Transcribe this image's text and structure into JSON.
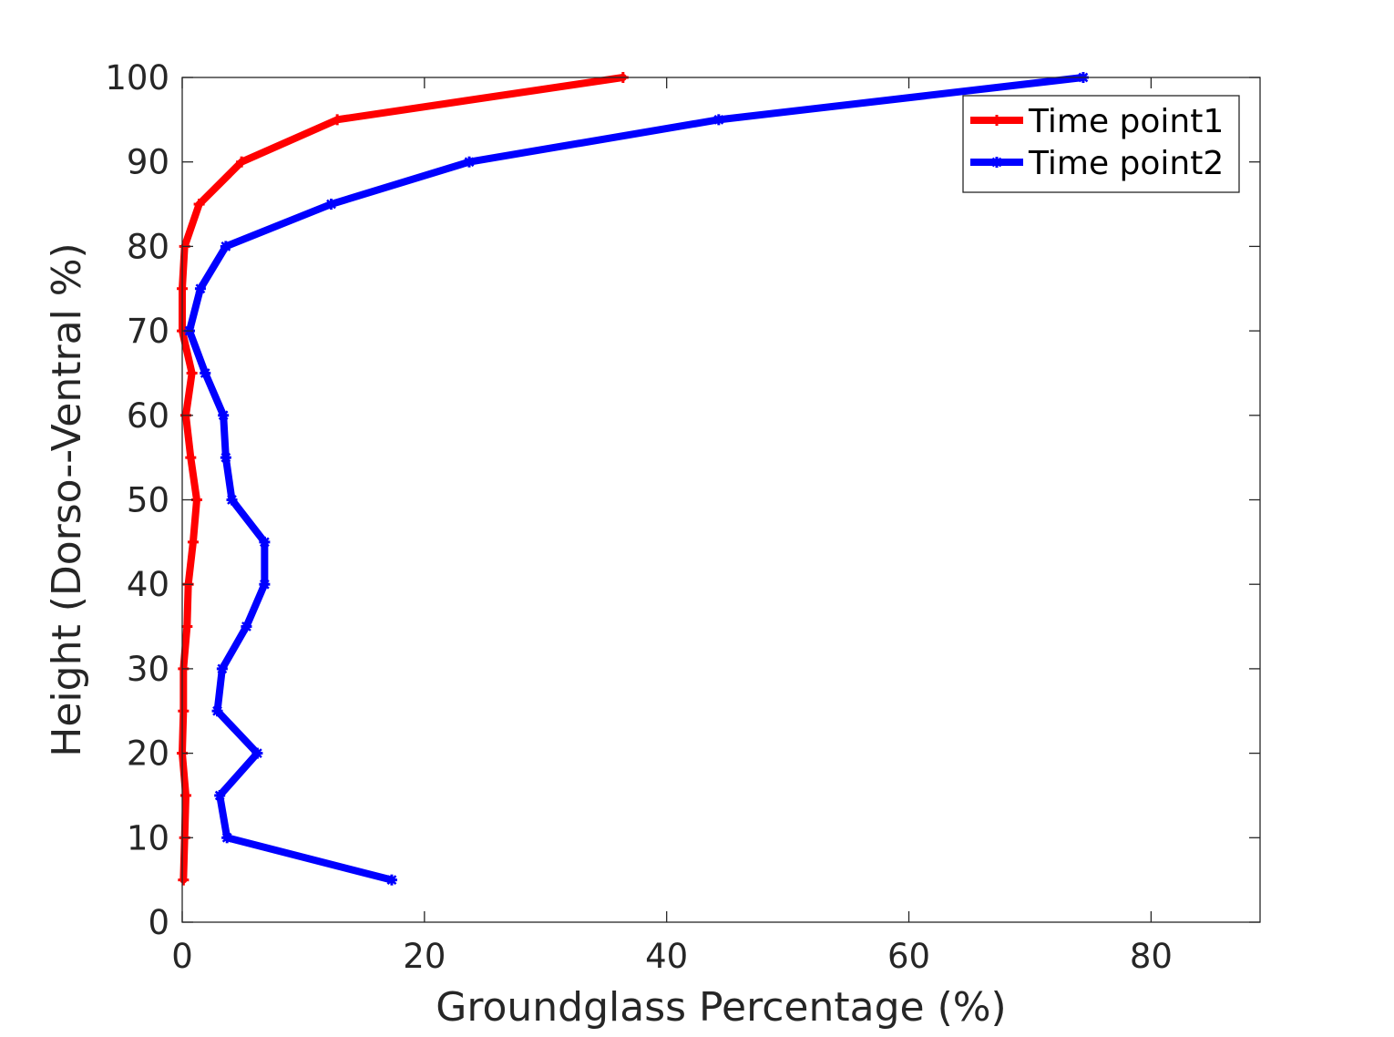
{
  "chart_data": {
    "type": "line",
    "title": "",
    "xlabel": "Groundglass Percentage (%)",
    "ylabel": "Height (Dorso--Ventral %)",
    "xlim": [
      0,
      89
    ],
    "ylim": [
      0,
      100
    ],
    "xticks": [
      0,
      20,
      40,
      60,
      80
    ],
    "yticks": [
      0,
      10,
      20,
      30,
      40,
      50,
      60,
      70,
      80,
      90,
      100
    ],
    "grid": false,
    "legend_position": "top-right",
    "series": [
      {
        "name": "Time point1",
        "color": "#ff0000",
        "marker": "plus",
        "points": [
          {
            "x": 0.1,
            "y": 5
          },
          {
            "x": 0.2,
            "y": 10
          },
          {
            "x": 0.3,
            "y": 15
          },
          {
            "x": 0.0,
            "y": 20
          },
          {
            "x": 0.1,
            "y": 25
          },
          {
            "x": 0.1,
            "y": 30
          },
          {
            "x": 0.4,
            "y": 35
          },
          {
            "x": 0.5,
            "y": 40
          },
          {
            "x": 0.9,
            "y": 45
          },
          {
            "x": 1.2,
            "y": 50
          },
          {
            "x": 0.7,
            "y": 55
          },
          {
            "x": 0.3,
            "y": 60
          },
          {
            "x": 0.8,
            "y": 65
          },
          {
            "x": 0.0,
            "y": 70
          },
          {
            "x": 0.0,
            "y": 75
          },
          {
            "x": 0.2,
            "y": 80
          },
          {
            "x": 1.4,
            "y": 85
          },
          {
            "x": 4.9,
            "y": 90
          },
          {
            "x": 12.8,
            "y": 95
          },
          {
            "x": 36.4,
            "y": 100
          }
        ]
      },
      {
        "name": "Time point2",
        "color": "#0000ff",
        "marker": "star",
        "points": [
          {
            "x": 17.3,
            "y": 5
          },
          {
            "x": 3.7,
            "y": 10
          },
          {
            "x": 3.1,
            "y": 15
          },
          {
            "x": 6.2,
            "y": 20
          },
          {
            "x": 2.9,
            "y": 25
          },
          {
            "x": 3.3,
            "y": 30
          },
          {
            "x": 5.3,
            "y": 35
          },
          {
            "x": 6.8,
            "y": 40
          },
          {
            "x": 6.8,
            "y": 45
          },
          {
            "x": 4.1,
            "y": 50
          },
          {
            "x": 3.6,
            "y": 55
          },
          {
            "x": 3.4,
            "y": 60
          },
          {
            "x": 1.9,
            "y": 65
          },
          {
            "x": 0.6,
            "y": 70
          },
          {
            "x": 1.5,
            "y": 75
          },
          {
            "x": 3.6,
            "y": 80
          },
          {
            "x": 12.3,
            "y": 85
          },
          {
            "x": 23.7,
            "y": 90
          },
          {
            "x": 44.3,
            "y": 95
          },
          {
            "x": 74.4,
            "y": 100
          }
        ]
      }
    ]
  }
}
